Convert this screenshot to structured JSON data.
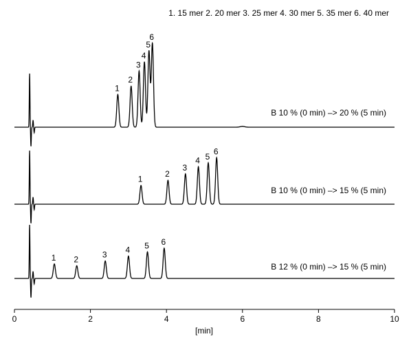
{
  "chart_data": {
    "type": "line",
    "title": "",
    "legend_text": "1. 15 mer 2. 20 mer 3. 25 mer 4. 30 mer 5. 35 mer 6. 40 mer",
    "xlabel": "[min]",
    "ylabel": "",
    "xlim": [
      0,
      10
    ],
    "x_ticks": [
      0,
      2,
      4,
      6,
      8,
      10
    ],
    "x_tick_labels": [
      "0",
      "2",
      "4",
      "6",
      "8",
      "10"
    ],
    "grid": false,
    "injection_time": 0.4,
    "traces": [
      {
        "condition": "B 10 % (0 min) –> 20 % (5 min)",
        "peaks": [
          {
            "label": "1",
            "time": 2.72,
            "height": 0.39
          },
          {
            "label": "2",
            "time": 3.07,
            "height": 0.49
          },
          {
            "label": "3",
            "time": 3.28,
            "height": 0.67
          },
          {
            "label": "4",
            "time": 3.42,
            "height": 0.78
          },
          {
            "label": "5",
            "time": 3.54,
            "height": 0.91
          },
          {
            "label": "6",
            "time": 3.63,
            "height": 1.0
          }
        ]
      },
      {
        "condition": "B 10 % (0 min) –> 15 % (5 min)",
        "peaks": [
          {
            "label": "1",
            "time": 3.33,
            "height": 0.29
          },
          {
            "label": "2",
            "time": 4.04,
            "height": 0.37
          },
          {
            "label": "3",
            "time": 4.5,
            "height": 0.47
          },
          {
            "label": "4",
            "time": 4.84,
            "height": 0.58
          },
          {
            "label": "5",
            "time": 5.1,
            "height": 0.64
          },
          {
            "label": "6",
            "time": 5.32,
            "height": 0.72
          }
        ]
      },
      {
        "condition": "B 12 % (0 min) –> 15 % (5 min)",
        "peaks": [
          {
            "label": "1",
            "time": 1.05,
            "height": 0.24
          },
          {
            "label": "2",
            "time": 1.64,
            "height": 0.21
          },
          {
            "label": "3",
            "time": 2.39,
            "height": 0.29
          },
          {
            "label": "4",
            "time": 3.0,
            "height": 0.37
          },
          {
            "label": "5",
            "time": 3.5,
            "height": 0.44
          },
          {
            "label": "6",
            "time": 3.94,
            "height": 0.5
          }
        ]
      }
    ]
  }
}
